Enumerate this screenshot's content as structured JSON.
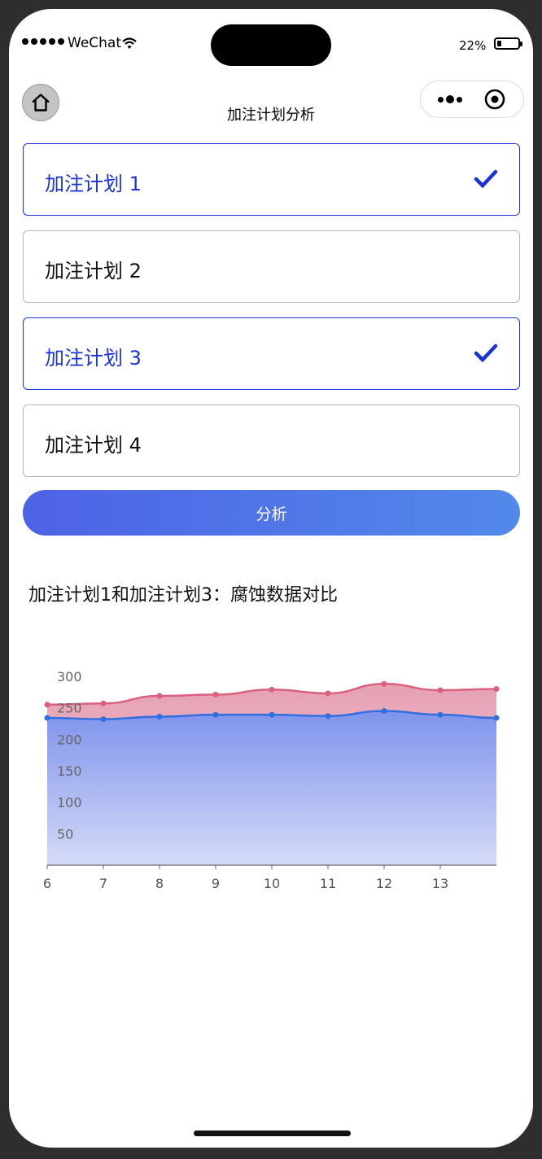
{
  "status_bar": {
    "carrier": "WeChat",
    "battery_percent": "22%",
    "battery_level": 0.22
  },
  "navbar": {
    "title": "加注计划分析"
  },
  "plans": [
    {
      "label": "加注计划 1",
      "selected": true
    },
    {
      "label": "加注计划 2",
      "selected": false
    },
    {
      "label": "加注计划 3",
      "selected": true
    },
    {
      "label": "加注计划 4",
      "selected": false
    }
  ],
  "analyze_button": {
    "label": "分析"
  },
  "chart_title": "加注计划1和加注计划3：腐蚀数据对比",
  "colors": {
    "accent": "#1a33d9",
    "series_red": "#d9607e",
    "series_blue": "#2f6fe0"
  },
  "chart_data": {
    "type": "area",
    "title": "",
    "xlabel": "",
    "ylabel": "",
    "x": [
      6,
      7,
      8,
      9,
      10,
      11,
      12,
      13,
      14
    ],
    "x_tick_labels": [
      "6",
      "7",
      "8",
      "9",
      "10",
      "11",
      "12",
      "13"
    ],
    "y_tick_labels": [
      "50",
      "100",
      "150",
      "200",
      "250",
      "300"
    ],
    "ylim": [
      0,
      300
    ],
    "series": [
      {
        "values": [
          255,
          257,
          269,
          271,
          279,
          273,
          288,
          278,
          280
        ]
      },
      {
        "values": [
          234,
          232,
          236,
          239,
          239,
          237,
          245,
          239,
          234
        ]
      }
    ],
    "grid": false,
    "legend": "none"
  }
}
